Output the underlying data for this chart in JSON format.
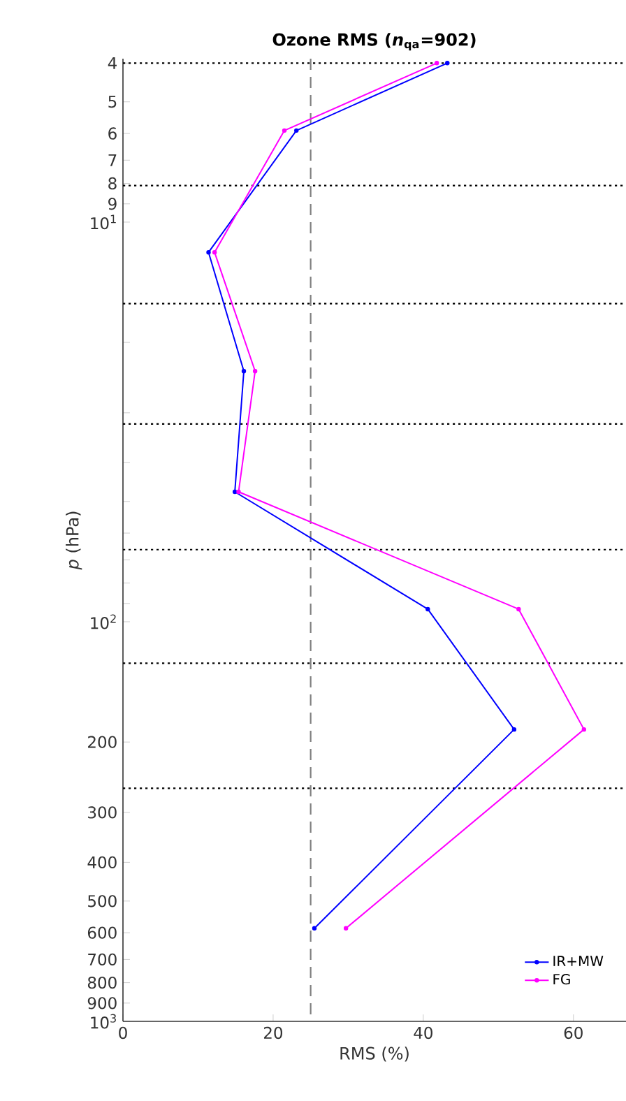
{
  "chart_data": {
    "type": "line",
    "title": "Ozone RMS (*n*$_{qa}$=902)",
    "xlabel": "RMS (%)",
    "ylabel": "*p* (hPa)",
    "xlim": [
      0,
      67
    ],
    "xticks": [
      0,
      20,
      40,
      60
    ],
    "ylim": [
      1000,
      3.9
    ],
    "log": "y",
    "yticks": [
      4,
      5,
      6,
      7,
      8,
      9,
      {
        "value": 10,
        "label": "10$^{1}$"
      },
      {
        "value": 20,
        "label": null
      },
      {
        "value": 30,
        "label": null
      },
      {
        "value": 40,
        "label": null
      },
      {
        "value": 50,
        "label": null
      },
      {
        "value": 60,
        "label": null
      },
      {
        "value": 70,
        "label": null
      },
      {
        "value": 80,
        "label": null
      },
      {
        "value": 90,
        "label": null
      },
      {
        "value": 100,
        "label": "10$^{2}$"
      },
      200,
      300,
      400,
      500,
      600,
      700,
      800,
      900,
      {
        "value": 1000,
        "label": "10$^{3}$"
      }
    ],
    "series": [
      {
        "name": "IR+MW",
        "color": "#0000ff",
        "x": [
          43.2,
          23.1,
          11.4,
          16.1,
          14.9,
          40.6,
          52.1,
          25.5
        ],
        "values": [
          4,
          5.9,
          11.9,
          23.6,
          47.3,
          93,
          186,
          585
        ]
      },
      {
        "name": "FG",
        "color": "#ff00ff",
        "x": [
          41.8,
          21.5,
          12.2,
          17.6,
          15.4,
          52.7,
          61.4,
          29.7
        ],
        "values": [
          4,
          5.9,
          11.9,
          23.6,
          47.3,
          93,
          186,
          585
        ]
      }
    ],
    "ref_lines": [
      {
        "axis": "y",
        "value": 4,
        "color": "#000000",
        "line_style": "dotted"
      },
      {
        "axis": "y",
        "value": 8.1,
        "color": "#000000",
        "line_style": "dotted"
      },
      {
        "axis": "y",
        "value": 16,
        "color": "#000000",
        "line_style": "dotted"
      },
      {
        "axis": "y",
        "value": 32,
        "color": "#000000",
        "line_style": "dotted"
      },
      {
        "axis": "y",
        "value": 66,
        "color": "#000000",
        "line_style": "dotted"
      },
      {
        "axis": "y",
        "value": 127,
        "color": "#000000",
        "line_style": "dotted"
      },
      {
        "axis": "y",
        "value": 261,
        "color": "#000000",
        "line_style": "dotted"
      },
      {
        "axis": "x",
        "value": 25,
        "color": "#808080",
        "line_style": "dashed"
      }
    ],
    "marker": "circle",
    "legend": "bottom right"
  }
}
